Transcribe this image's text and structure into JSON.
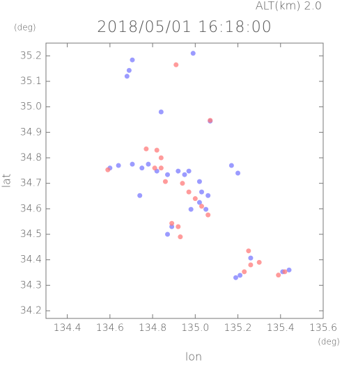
{
  "chart_data": {
    "type": "scatter",
    "title": "2018/05/01 16:18:00",
    "subtitle": "ALT(km) 2.0",
    "x_label": "lon",
    "y_label": "lat",
    "x_unit": "(deg)",
    "y_unit": "(deg)",
    "xlim": [
      134.3,
      135.6
    ],
    "ylim": [
      34.17,
      35.25
    ],
    "xticks": [
      134.4,
      134.6,
      134.8,
      {
        "value": 135,
        "label": "135.0"
      },
      135.2,
      135.4,
      135.6
    ],
    "yticks": [
      34.2,
      34.3,
      34.4,
      34.5,
      34.6,
      34.7,
      34.8,
      34.9,
      {
        "value": 35,
        "label": "35.0"
      },
      35.1,
      35.2
    ],
    "series": [
      {
        "color": "#7a7aff",
        "x": [
          134.705,
          134.69,
          134.68,
          134.99,
          134.84,
          134.6,
          134.64,
          134.705,
          134.75,
          134.78,
          134.82,
          134.87,
          134.92,
          134.95,
          134.97,
          135.02,
          135.03,
          135.06,
          135.02,
          134.98,
          135.05,
          134.89,
          134.87,
          135.07,
          135.17,
          135.2,
          135.26,
          135.21,
          135.19,
          135.44,
          135.41,
          134.74
        ],
        "y": [
          35.184,
          35.143,
          35.12,
          35.21,
          34.98,
          34.76,
          34.77,
          34.775,
          34.76,
          34.775,
          34.748,
          34.734,
          34.748,
          34.734,
          34.748,
          34.707,
          34.666,
          34.652,
          34.625,
          34.598,
          34.598,
          34.53,
          34.5,
          34.944,
          34.77,
          34.74,
          34.407,
          34.339,
          34.33,
          34.36,
          34.353,
          34.652
        ]
      },
      {
        "color": "#ff7a7a",
        "x": [
          134.91,
          134.77,
          134.82,
          134.81,
          134.84,
          134.86,
          134.94,
          134.97,
          135.0,
          135.06,
          135.03,
          134.92,
          134.89,
          134.93,
          135.07,
          135.25,
          135.26,
          135.3,
          135.23,
          135.39,
          135.42,
          134.59,
          134.84
        ],
        "y": [
          35.165,
          34.835,
          34.83,
          34.76,
          34.76,
          34.707,
          34.7,
          34.666,
          34.64,
          34.576,
          34.61,
          34.53,
          34.543,
          34.49,
          34.947,
          34.435,
          34.38,
          34.39,
          34.353,
          34.34,
          34.353,
          34.753,
          34.8
        ]
      }
    ]
  }
}
